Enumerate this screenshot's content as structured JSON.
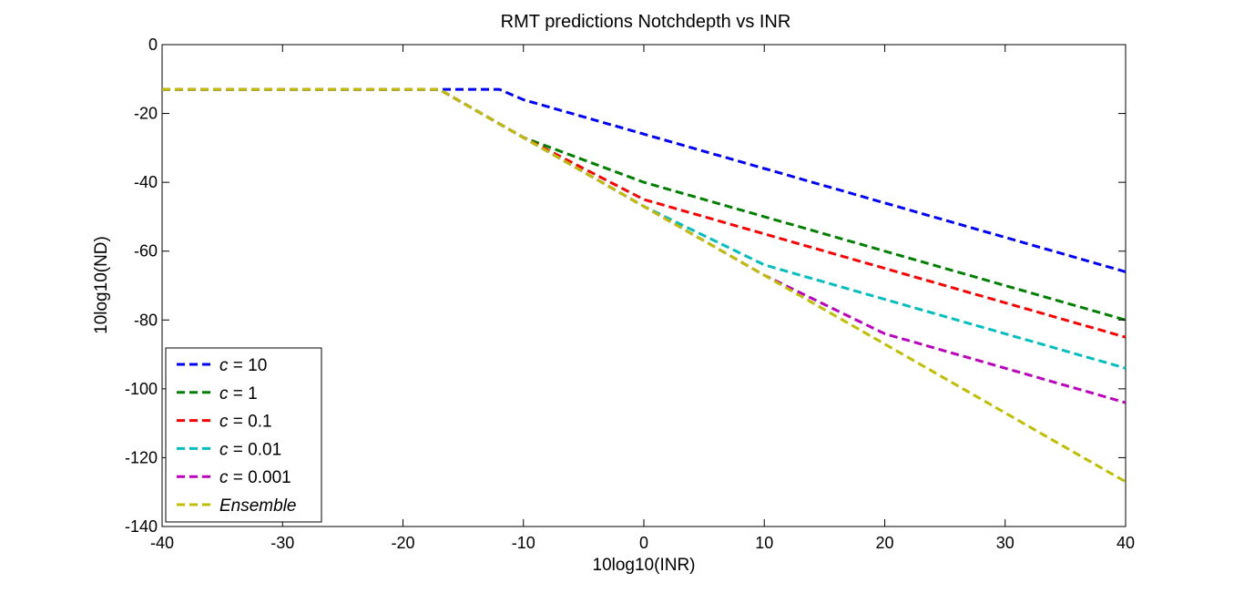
{
  "chart_data": {
    "type": "line",
    "title": "RMT predictions Notchdepth vs INR",
    "xlabel": "10log10(INR)",
    "ylabel": "10log10(ND)",
    "xlim": [
      -40,
      40
    ],
    "ylim": [
      -140,
      0
    ],
    "xticks": [
      -40,
      -30,
      -20,
      -10,
      0,
      10,
      20,
      30,
      40
    ],
    "yticks": [
      0,
      -20,
      -40,
      -60,
      -80,
      -100,
      -120,
      -140
    ],
    "grid": false,
    "legend_position": "bottom-left",
    "line_style": "dashed",
    "series": [
      {
        "name": "c = 10",
        "name_prefix": "c",
        "name_suffix": " = 10",
        "color": "#0000ff",
        "x": [
          -40,
          -17,
          -12,
          -10,
          0,
          10,
          20,
          30,
          40
        ],
        "y": [
          -13,
          -13,
          -13,
          -16,
          -26,
          -36,
          -46,
          -56,
          -66
        ]
      },
      {
        "name": "c = 1",
        "name_prefix": "c",
        "name_suffix": " = 1",
        "color": "#008000",
        "x": [
          -40,
          -17,
          -10,
          0,
          10,
          20,
          30,
          40
        ],
        "y": [
          -13,
          -13,
          -27,
          -40,
          -50,
          -60,
          -70,
          -80
        ]
      },
      {
        "name": "c = 0.1",
        "name_prefix": "c",
        "name_suffix": " = 0.1",
        "color": "#ff0000",
        "x": [
          -40,
          -17,
          -10,
          0,
          10,
          20,
          30,
          40
        ],
        "y": [
          -13,
          -13,
          -27,
          -45,
          -55,
          -65,
          -75,
          -85
        ]
      },
      {
        "name": "c = 0.01",
        "name_prefix": "c",
        "name_suffix": " = 0.01",
        "color": "#00bfbf",
        "x": [
          -40,
          -17,
          -10,
          0,
          10,
          20,
          30,
          40
        ],
        "y": [
          -13,
          -13,
          -27,
          -47,
          -64,
          -74,
          -84,
          -94
        ]
      },
      {
        "name": "c = 0.001",
        "name_prefix": "c",
        "name_suffix": " = 0.001",
        "color": "#bf00bf",
        "x": [
          -40,
          -17,
          -10,
          0,
          10,
          20,
          30,
          40
        ],
        "y": [
          -13,
          -13,
          -27,
          -47,
          -67,
          -84,
          -94,
          -104
        ]
      },
      {
        "name": "Ensemble",
        "name_prefix": "",
        "name_suffix": "Ensemble",
        "italic_all": true,
        "color": "#bfbf00",
        "x": [
          -40,
          -17,
          -10,
          0,
          10,
          20,
          30,
          40
        ],
        "y": [
          -13,
          -13,
          -27,
          -47,
          -67,
          -87,
          -107,
          -127
        ]
      }
    ]
  }
}
